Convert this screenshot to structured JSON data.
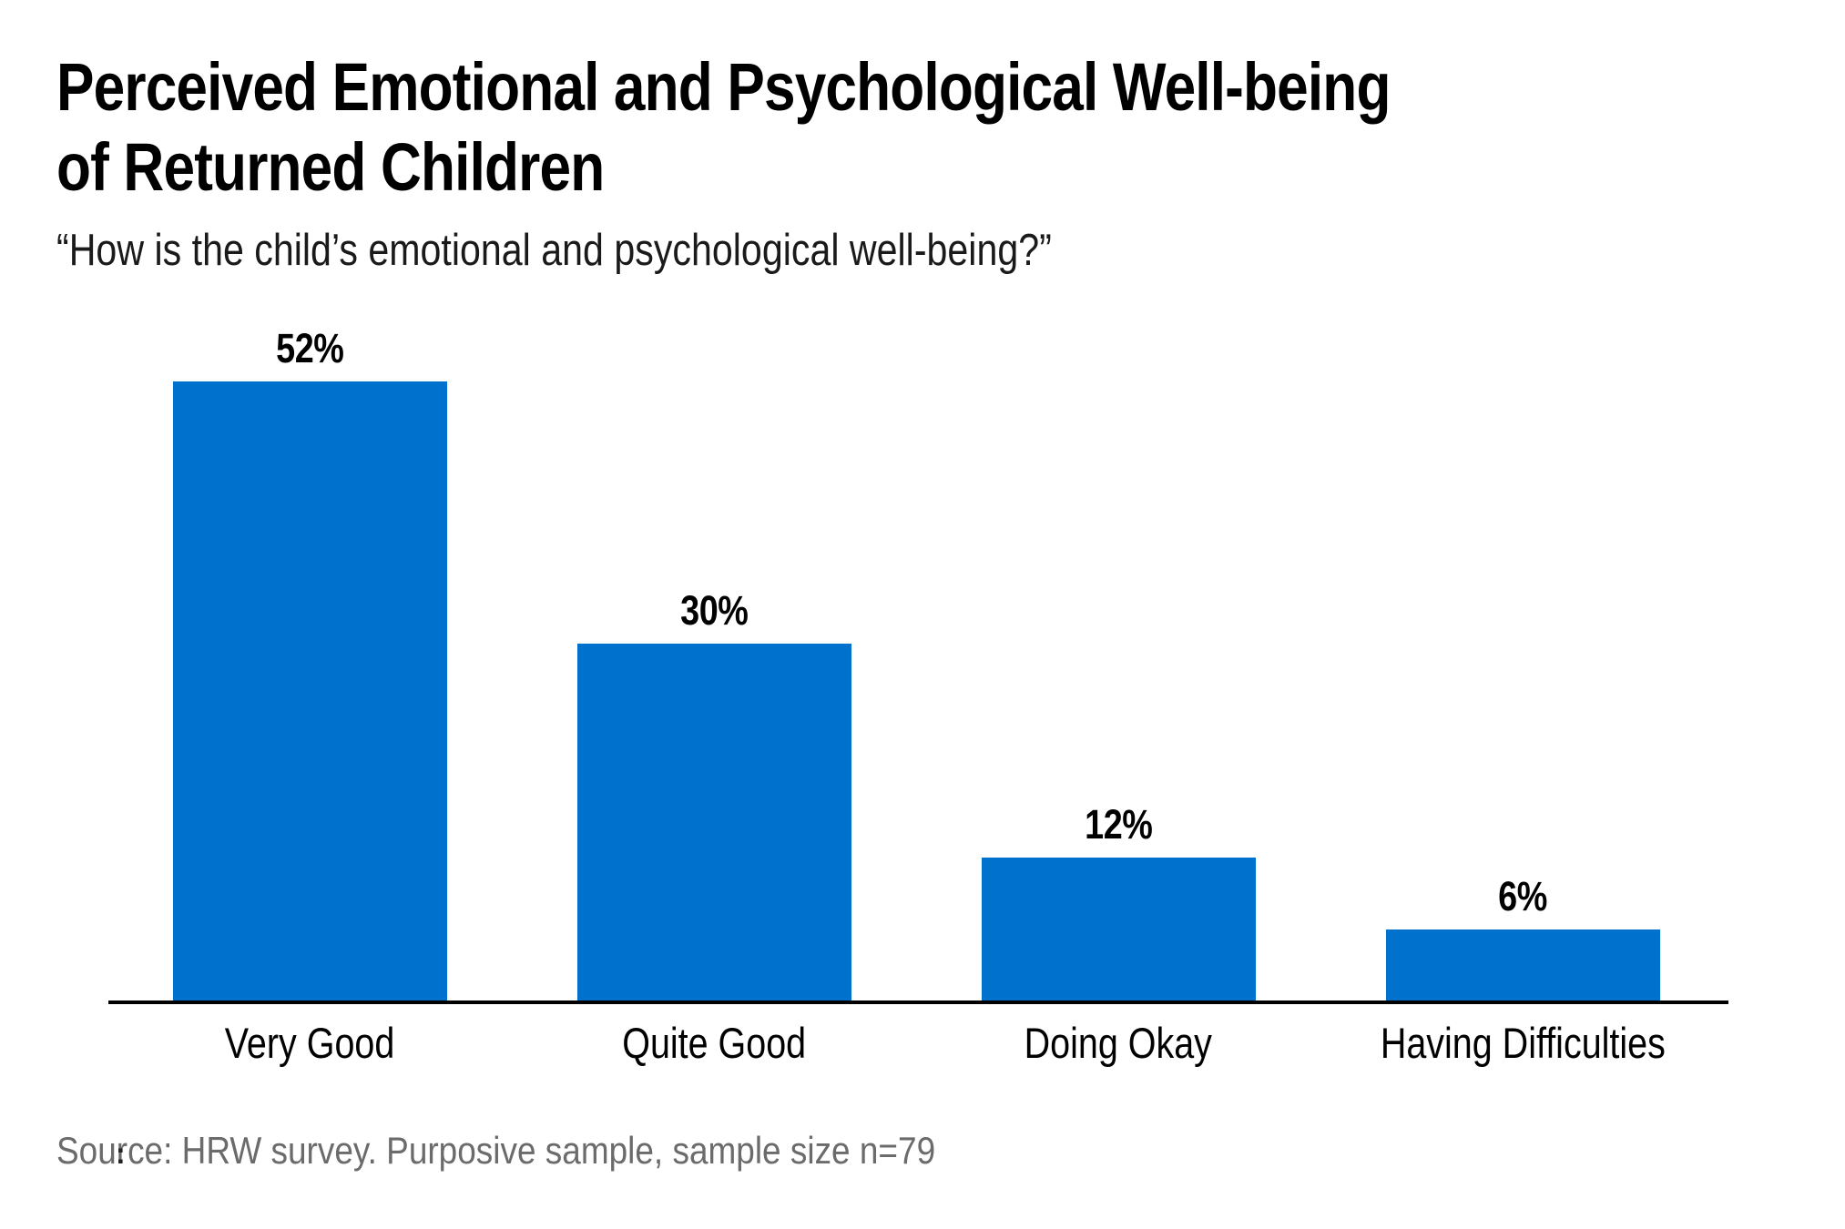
{
  "chart_data": {
    "type": "bar",
    "title": "Perceived Emotional and Psychological Well-being of Returned Children",
    "title_lines": [
      "Perceived Emotional and Psychological Well-being",
      "of Returned Children"
    ],
    "subtitle": "“How is the child’s emotional and psychological well-being?”",
    "categories": [
      "Very Good",
      "Quite Good",
      "Doing Okay",
      "Having Difficulties"
    ],
    "values": [
      52,
      30,
      12,
      6
    ],
    "value_labels": [
      "52%",
      "30%",
      "12%",
      "6%"
    ],
    "unit": "percent",
    "source": "Source: HRW survey. Purposive sample, sample size n=79",
    "stray_mark": ":",
    "colors": {
      "bar": "#0072ce",
      "axis": "#000000",
      "title_text": "#000000",
      "subtitle_text": "#1a1a1a",
      "category_text": "#000000",
      "value_text": "#000000",
      "source_text": "#6b6b6b",
      "background": "#ffffff"
    },
    "layout_hints": {
      "grid": false,
      "legend": false,
      "y_axis_shown": false,
      "x_axis_shown": true,
      "value_labels_position": "above-bars",
      "ylim": [
        0,
        55
      ]
    }
  }
}
